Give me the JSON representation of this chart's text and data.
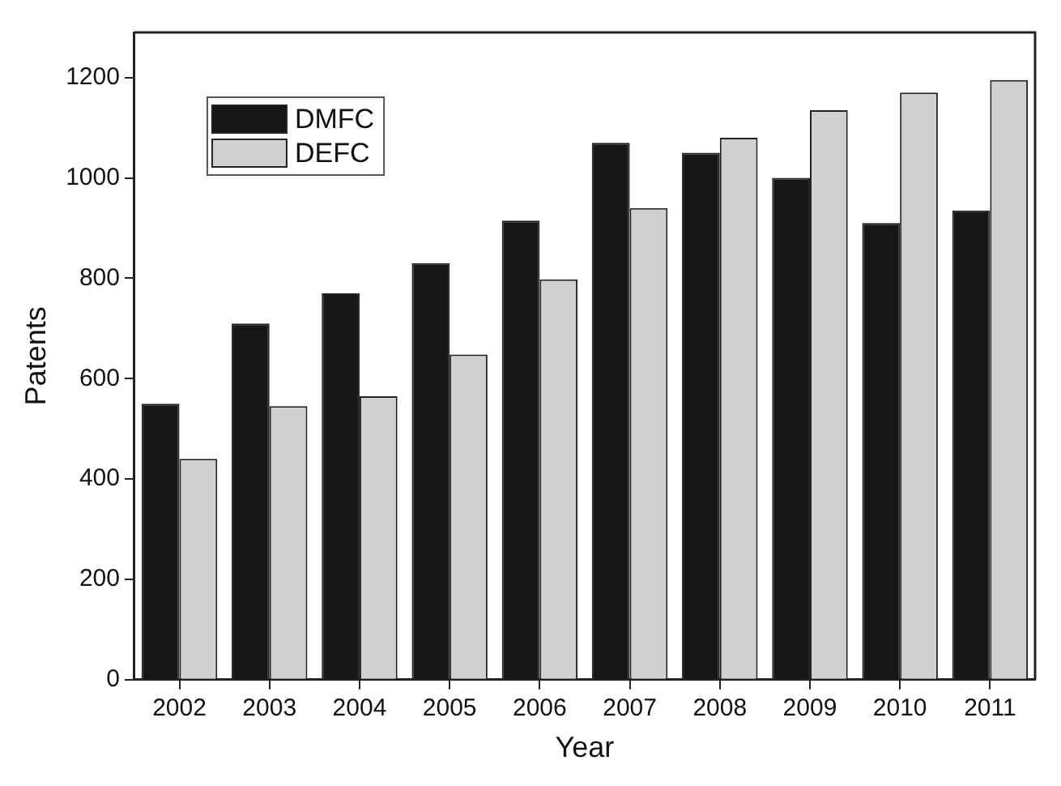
{
  "chart_data": {
    "type": "bar",
    "xlabel": "Year",
    "ylabel": "Patents",
    "categories": [
      "2002",
      "2003",
      "2004",
      "2005",
      "2006",
      "2007",
      "2008",
      "2009",
      "2010",
      "2011"
    ],
    "series": [
      {
        "name": "DMFC",
        "color": "#161616",
        "values": [
          550,
          710,
          770,
          830,
          915,
          1070,
          1050,
          1000,
          910,
          935
        ]
      },
      {
        "name": "DEFC",
        "color": "#d0d0d0",
        "values": [
          440,
          545,
          565,
          648,
          798,
          940,
          1080,
          1135,
          1170,
          1195
        ]
      }
    ],
    "ylim": [
      0,
      1290
    ],
    "yticks": [
      0,
      200,
      400,
      600,
      800,
      1000,
      1200
    ],
    "grid": false,
    "legend": "top left"
  }
}
